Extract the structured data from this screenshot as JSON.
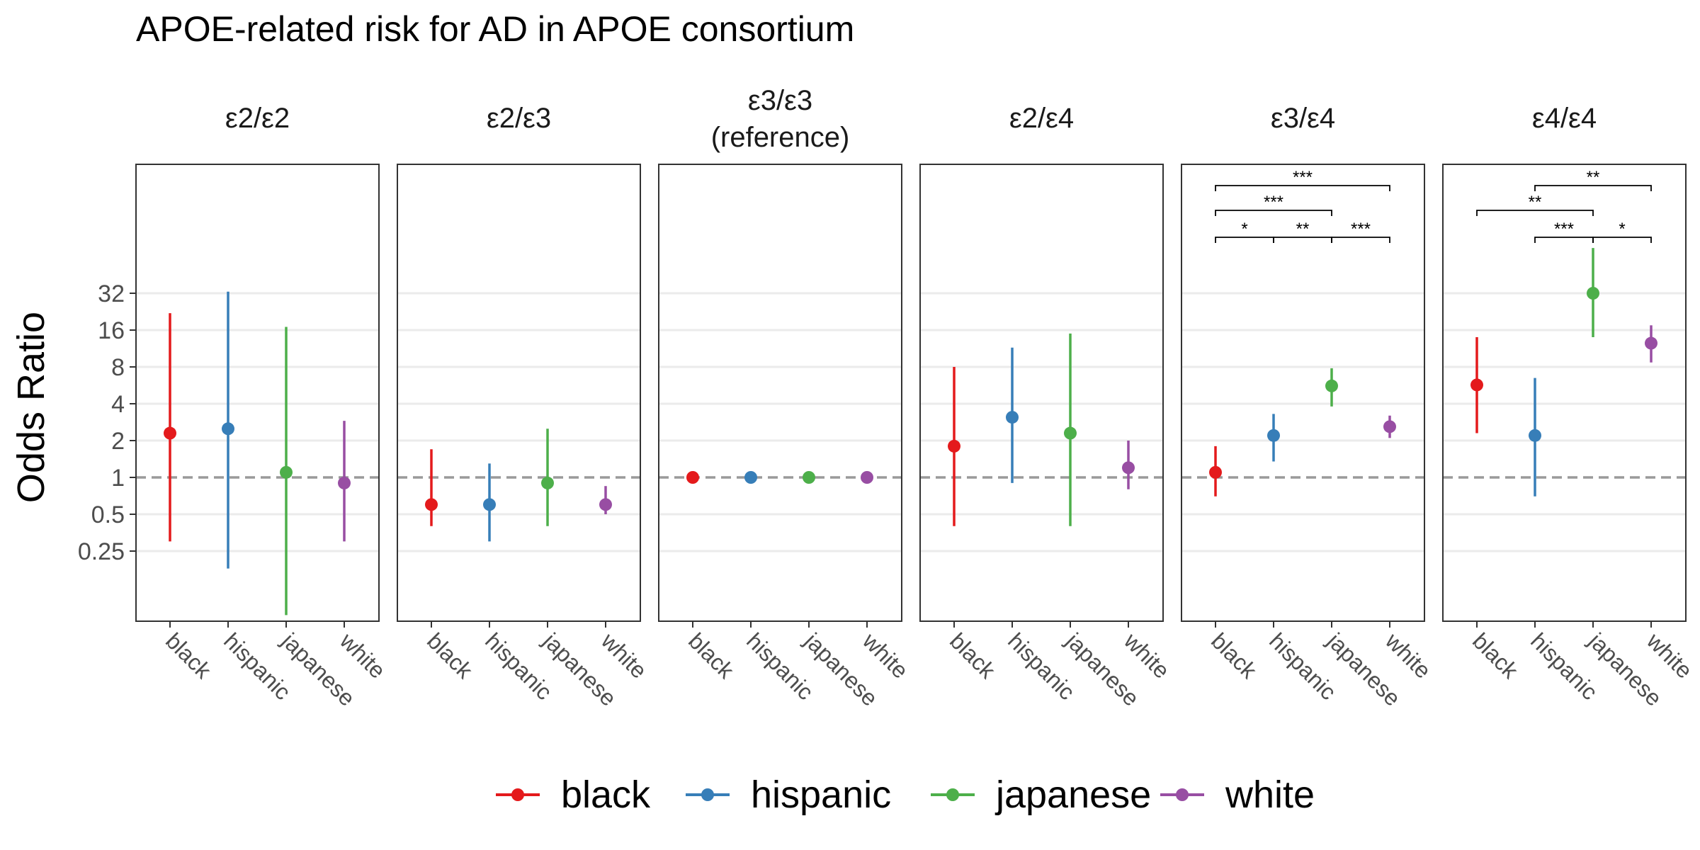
{
  "chart_data": {
    "type": "scatter",
    "subtype": "point-range, faceted",
    "title": "APOE-related risk for AD in APOE consortium",
    "ylabel": "Odds Ratio",
    "y_scale": "log2",
    "ylim": [
      0.09,
      140
    ],
    "y_ticks": [
      {
        "value": 0.25,
        "label": "0.25"
      },
      {
        "value": 0.5,
        "label": "0.5"
      },
      {
        "value": 1,
        "label": "1"
      },
      {
        "value": 2,
        "label": "2"
      },
      {
        "value": 4,
        "label": "4"
      },
      {
        "value": 8,
        "label": "8"
      },
      {
        "value": 16,
        "label": "16"
      },
      {
        "value": 32,
        "label": "32"
      }
    ],
    "reference_line": 1,
    "grid": "horizontal major",
    "legend": {
      "position": "bottom",
      "entries": [
        "black",
        "hispanic",
        "japanese",
        "white"
      ]
    },
    "categories": [
      "black",
      "hispanic",
      "japanese",
      "white"
    ],
    "colors": {
      "black": "#E41A1C",
      "hispanic": "#377EB8",
      "japanese": "#4DAF4A",
      "white": "#984EA3"
    },
    "facets": [
      {
        "label": [
          "ε2/ε2"
        ],
        "points": [
          {
            "group": "black",
            "or": 2.3,
            "lo": 0.3,
            "hi": 22
          },
          {
            "group": "hispanic",
            "or": 2.5,
            "lo": 0.18,
            "hi": 33
          },
          {
            "group": "japanese",
            "or": 1.1,
            "lo": 0.075,
            "hi": 17
          },
          {
            "group": "white",
            "or": 0.9,
            "lo": 0.3,
            "hi": 2.9
          }
        ],
        "brackets": []
      },
      {
        "label": [
          "ε2/ε3"
        ],
        "points": [
          {
            "group": "black",
            "or": 0.6,
            "lo": 0.4,
            "hi": 1.7
          },
          {
            "group": "hispanic",
            "or": 0.6,
            "lo": 0.3,
            "hi": 1.3
          },
          {
            "group": "japanese",
            "or": 0.9,
            "lo": 0.4,
            "hi": 2.5
          },
          {
            "group": "white",
            "or": 0.6,
            "lo": 0.5,
            "hi": 0.85
          }
        ],
        "brackets": []
      },
      {
        "label": [
          "ε3/ε3",
          "(reference)"
        ],
        "points": [
          {
            "group": "black",
            "or": 1,
            "lo": 1,
            "hi": 1
          },
          {
            "group": "hispanic",
            "or": 1,
            "lo": 1,
            "hi": 1
          },
          {
            "group": "japanese",
            "or": 1,
            "lo": 1,
            "hi": 1
          },
          {
            "group": "white",
            "or": 1,
            "lo": 1,
            "hi": 1
          }
        ],
        "brackets": []
      },
      {
        "label": [
          "ε2/ε4"
        ],
        "points": [
          {
            "group": "black",
            "or": 1.8,
            "lo": 0.4,
            "hi": 8
          },
          {
            "group": "hispanic",
            "or": 3.1,
            "lo": 0.9,
            "hi": 11.5
          },
          {
            "group": "japanese",
            "or": 2.3,
            "lo": 0.4,
            "hi": 15
          },
          {
            "group": "white",
            "or": 1.2,
            "lo": 0.8,
            "hi": 2
          }
        ],
        "brackets": []
      },
      {
        "label": [
          "ε3/ε4"
        ],
        "points": [
          {
            "group": "black",
            "or": 1.1,
            "lo": 0.7,
            "hi": 1.8
          },
          {
            "group": "hispanic",
            "or": 2.2,
            "lo": 1.35,
            "hi": 3.3
          },
          {
            "group": "japanese",
            "or": 5.6,
            "lo": 3.8,
            "hi": 7.8
          },
          {
            "group": "white",
            "or": 2.6,
            "lo": 2.1,
            "hi": 3.2
          }
        ],
        "brackets": [
          {
            "from": "black",
            "to": "white",
            "label": "***",
            "tier": 3
          },
          {
            "from": "black",
            "to": "japanese",
            "label": "***",
            "tier": 2
          },
          {
            "from": "black",
            "to": "hispanic",
            "label": "*",
            "tier": 1
          },
          {
            "from": "hispanic",
            "to": "japanese",
            "label": "**",
            "tier": 1
          },
          {
            "from": "japanese",
            "to": "white",
            "label": "***",
            "tier": 1
          }
        ]
      },
      {
        "label": [
          "ε4/ε4"
        ],
        "points": [
          {
            "group": "black",
            "or": 5.7,
            "lo": 2.3,
            "hi": 14
          },
          {
            "group": "hispanic",
            "or": 2.2,
            "lo": 0.7,
            "hi": 6.5
          },
          {
            "group": "japanese",
            "or": 32,
            "lo": 14,
            "hi": 75
          },
          {
            "group": "white",
            "or": 12.5,
            "lo": 8.7,
            "hi": 17.5
          }
        ],
        "brackets": [
          {
            "from": "hispanic",
            "to": "white",
            "label": "**",
            "tier": 3
          },
          {
            "from": "black",
            "to": "japanese",
            "label": "**",
            "tier": 2
          },
          {
            "from": "hispanic",
            "to": "japanese",
            "label": "***",
            "tier": 1
          },
          {
            "from": "japanese",
            "to": "white",
            "label": "*",
            "tier": 1
          }
        ]
      }
    ]
  }
}
